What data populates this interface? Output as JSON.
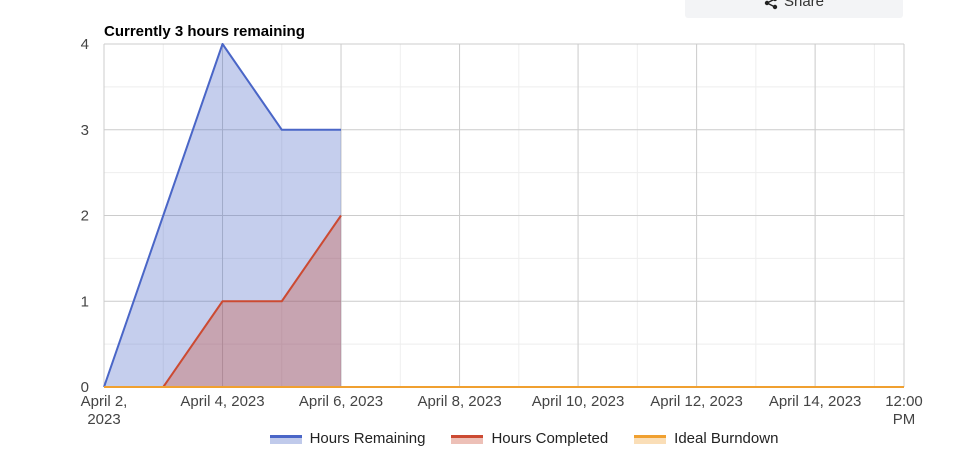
{
  "share": {
    "label": "Share",
    "icon": "share-icon"
  },
  "chart_data": {
    "type": "area",
    "title": "Currently 3 hours remaining",
    "xlabel": "",
    "ylabel": "",
    "ylim": [
      0,
      4
    ],
    "yticks": [
      "0",
      "1",
      "2",
      "3",
      "4"
    ],
    "xlim": [
      "2023-04-02T00:00",
      "2023-04-15T12:00"
    ],
    "xticks": [
      {
        "date": "2023-04-02T00:00",
        "label": [
          "April 2,",
          "2023"
        ]
      },
      {
        "date": "2023-04-04T00:00",
        "label": [
          "April 4, 2023"
        ]
      },
      {
        "date": "2023-04-06T00:00",
        "label": [
          "April 6, 2023"
        ]
      },
      {
        "date": "2023-04-08T00:00",
        "label": [
          "April 8, 2023"
        ]
      },
      {
        "date": "2023-04-10T00:00",
        "label": [
          "April 10, 2023"
        ]
      },
      {
        "date": "2023-04-12T00:00",
        "label": [
          "April 12, 2023"
        ]
      },
      {
        "date": "2023-04-14T00:00",
        "label": [
          "April 14, 2023"
        ]
      },
      {
        "date": "2023-04-15T12:00",
        "label": [
          "12:00",
          "PM"
        ]
      }
    ],
    "grid": true,
    "legend_position": "bottom",
    "series": [
      {
        "name": "Hours Remaining",
        "color": "#4a66c7",
        "fill": "#4a66c7",
        "points": [
          [
            "2023-04-02T00:00",
            0
          ],
          [
            "2023-04-03T00:00",
            2
          ],
          [
            "2023-04-04T00:00",
            4
          ],
          [
            "2023-04-05T00:00",
            3
          ],
          [
            "2023-04-06T00:00",
            3
          ]
        ]
      },
      {
        "name": "Hours Completed",
        "color": "#cc4a32",
        "fill": "#cc4a32",
        "points": [
          [
            "2023-04-02T00:00",
            0
          ],
          [
            "2023-04-03T00:00",
            0
          ],
          [
            "2023-04-04T00:00",
            1
          ],
          [
            "2023-04-05T00:00",
            1
          ],
          [
            "2023-04-06T00:00",
            2
          ]
        ]
      },
      {
        "name": "Ideal Burndown",
        "color": "#f0a030",
        "fill": "#f0a030",
        "points": [
          [
            "2023-04-02T00:00",
            0
          ],
          [
            "2023-04-15T12:00",
            0
          ]
        ]
      }
    ]
  }
}
